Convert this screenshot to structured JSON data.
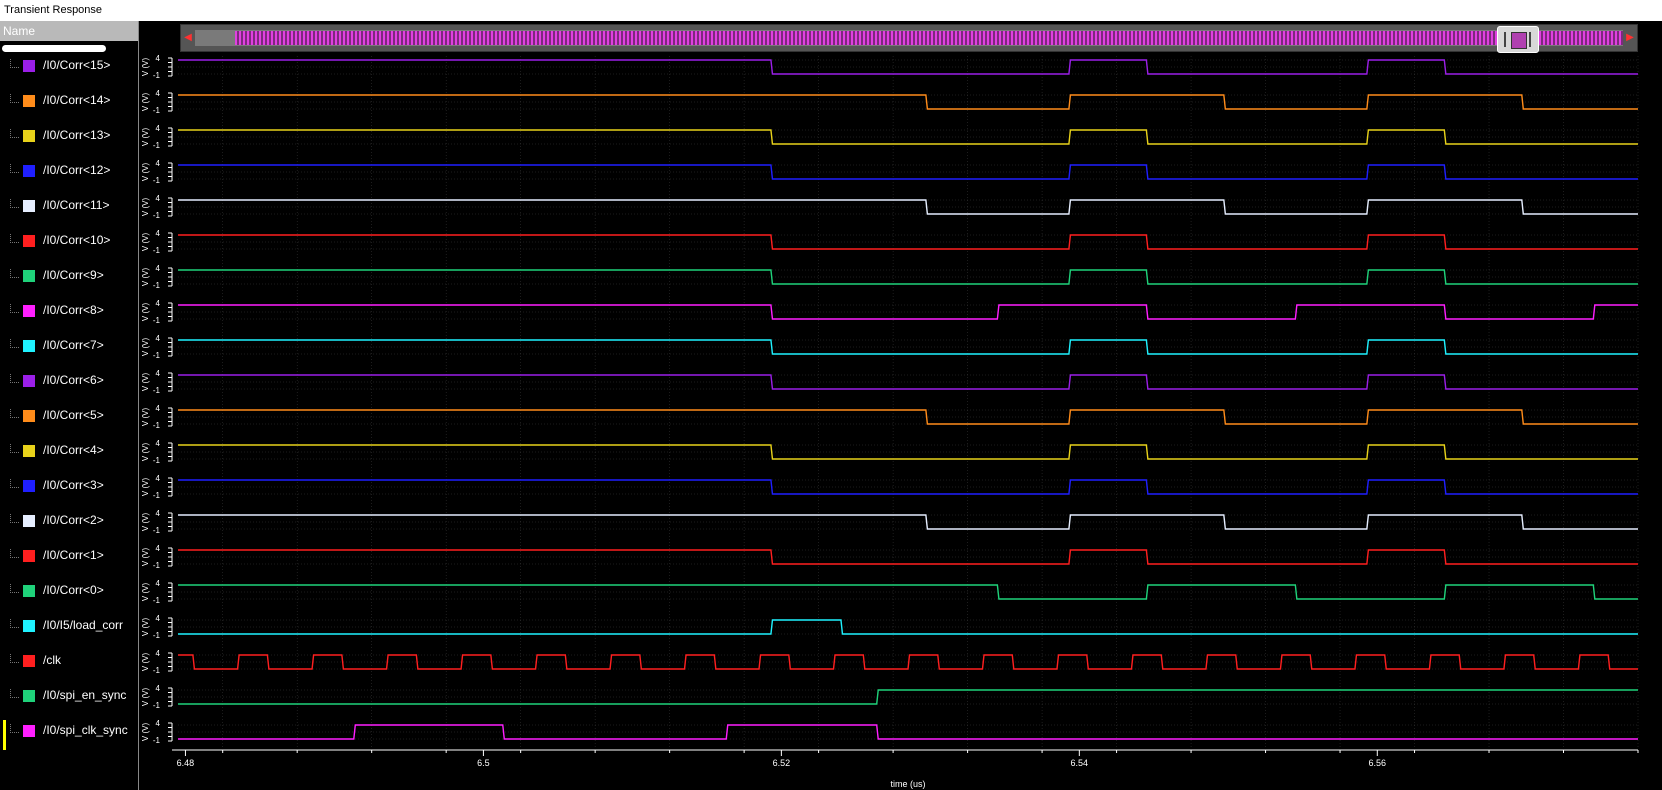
{
  "window": {
    "title": "Transient Response"
  },
  "sidebar": {
    "header": "Name"
  },
  "signals": [
    {
      "name": "/I0/Corr<15>",
      "color": "#9b1fe8",
      "start": 1,
      "toggles": [
        6.5193,
        6.5393,
        6.5445,
        6.5593,
        6.5645
      ]
    },
    {
      "name": "/I0/Corr<14>",
      "color": "#ff8c1a",
      "start": 1,
      "toggles": [
        6.5297,
        6.5393,
        6.5497,
        6.5593,
        6.5697
      ]
    },
    {
      "name": "/I0/Corr<13>",
      "color": "#e8d21a",
      "start": 1,
      "toggles": [
        6.5193,
        6.5393,
        6.5445,
        6.5593,
        6.5645
      ]
    },
    {
      "name": "/I0/Corr<12>",
      "color": "#1f1fff",
      "start": 1,
      "toggles": [
        6.5193,
        6.5393,
        6.5445,
        6.5593,
        6.5645
      ]
    },
    {
      "name": "/I0/Corr<11>",
      "color": "#e6eeff",
      "start": 1,
      "toggles": [
        6.5297,
        6.5393,
        6.5497,
        6.5593,
        6.5697
      ]
    },
    {
      "name": "/I0/Corr<10>",
      "color": "#ff1f1f",
      "start": 1,
      "toggles": [
        6.5193,
        6.5393,
        6.5445,
        6.5593,
        6.5645
      ]
    },
    {
      "name": "/I0/Corr<9>",
      "color": "#1fd27a",
      "start": 1,
      "toggles": [
        6.5193,
        6.5393,
        6.5445,
        6.5593,
        6.5645
      ]
    },
    {
      "name": "/I0/Corr<8>",
      "color": "#ff1fff",
      "start": 1,
      "toggles": [
        6.5193,
        6.5345,
        6.5445,
        6.5545,
        6.5645,
        6.5745
      ]
    },
    {
      "name": "/I0/Corr<7>",
      "color": "#1ff2ff",
      "start": 1,
      "toggles": [
        6.5193,
        6.5393,
        6.5445,
        6.5593,
        6.5645
      ]
    },
    {
      "name": "/I0/Corr<6>",
      "color": "#9b1fe8",
      "start": 1,
      "toggles": [
        6.5193,
        6.5393,
        6.5445,
        6.5593,
        6.5645
      ]
    },
    {
      "name": "/I0/Corr<5>",
      "color": "#ff8c1a",
      "start": 1,
      "toggles": [
        6.5297,
        6.5393,
        6.5497,
        6.5593,
        6.5697
      ]
    },
    {
      "name": "/I0/Corr<4>",
      "color": "#e8d21a",
      "start": 1,
      "toggles": [
        6.5193,
        6.5393,
        6.5445,
        6.5593,
        6.5645
      ]
    },
    {
      "name": "/I0/Corr<3>",
      "color": "#1f1fff",
      "start": 1,
      "toggles": [
        6.5193,
        6.5393,
        6.5445,
        6.5593,
        6.5645
      ]
    },
    {
      "name": "/I0/Corr<2>",
      "color": "#e6eeff",
      "start": 1,
      "toggles": [
        6.5297,
        6.5393,
        6.5497,
        6.5593,
        6.5697
      ]
    },
    {
      "name": "/I0/Corr<1>",
      "color": "#ff1f1f",
      "start": 1,
      "toggles": [
        6.5193,
        6.5393,
        6.5445,
        6.5593,
        6.5645
      ]
    },
    {
      "name": "/I0/Corr<0>",
      "color": "#1fd27a",
      "start": 1,
      "toggles": [
        6.5345,
        6.5445,
        6.5545,
        6.5645,
        6.5745
      ]
    },
    {
      "name": "/I0/I5/load_corr",
      "color": "#1ff2ff",
      "start": 0,
      "toggles": [
        6.5193,
        6.524
      ]
    },
    {
      "name": "/clk",
      "color": "#ff1f1f",
      "start": 1,
      "toggles": [
        6.4805,
        6.4835,
        6.4855,
        6.4885,
        6.4905,
        6.4935,
        6.4955,
        6.4985,
        6.5005,
        6.5035,
        6.5055,
        6.5085,
        6.5105,
        6.5135,
        6.5155,
        6.5185,
        6.5205,
        6.5235,
        6.5255,
        6.5285,
        6.5305,
        6.5335,
        6.5355,
        6.5385,
        6.5405,
        6.5435,
        6.5455,
        6.5485,
        6.5505,
        6.5535,
        6.5555,
        6.5585,
        6.5605,
        6.5635,
        6.5655,
        6.5685,
        6.5705,
        6.5735,
        6.5755
      ]
    },
    {
      "name": "/I0/spi_en_sync",
      "color": "#1fd27a",
      "start": 0,
      "toggles": [
        6.5264
      ]
    },
    {
      "name": "/I0/spi_clk_sync",
      "color": "#ff1fff",
      "start": 0,
      "toggles": [
        6.4913,
        6.5013,
        6.5163,
        6.5264
      ]
    }
  ],
  "axis": {
    "x_label": "time (us)",
    "x_ticks": [
      "6.48",
      "6.5",
      "6.52",
      "6.54",
      "6.56"
    ],
    "x_tick_values": [
      6.48,
      6.5,
      6.52,
      6.54,
      6.56
    ],
    "x_range": [
      6.4795,
      6.5775
    ],
    "y_label": "V (V)",
    "y_ticks": [
      "4",
      "-1"
    ]
  },
  "colors": {
    "background": "#000000",
    "grid": "#3a3a3a",
    "axis": "#ffffff",
    "selection_marker": "#ffff00"
  }
}
